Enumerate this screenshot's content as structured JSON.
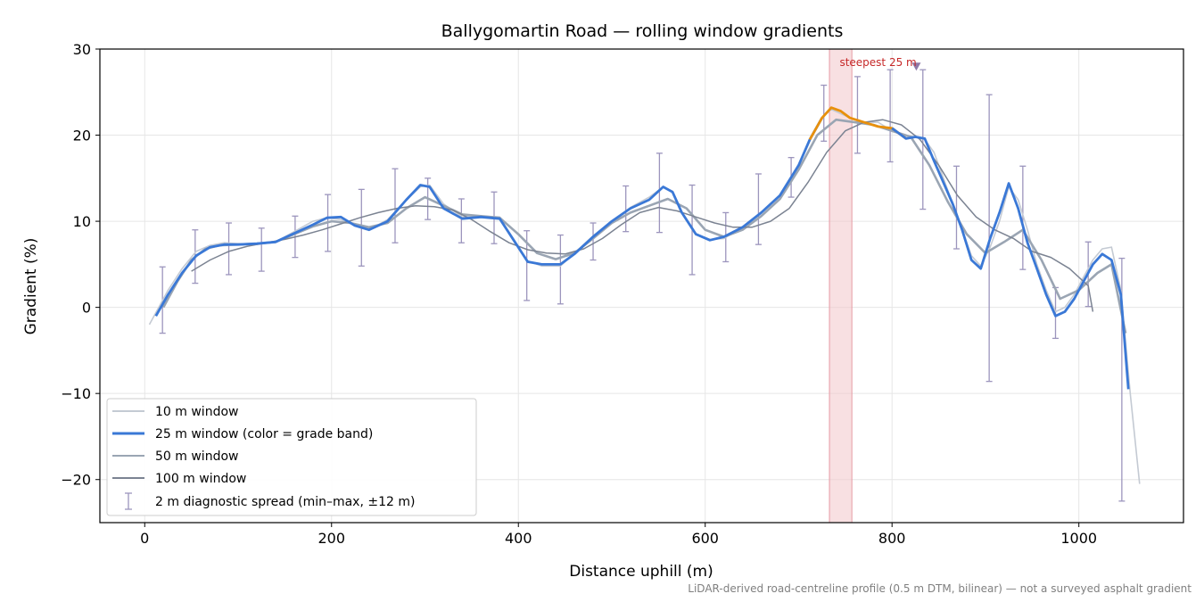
{
  "chart_data": {
    "type": "line",
    "title": "Ballygomartin Road — rolling window gradients",
    "xlabel": "Distance uphill (m)",
    "ylabel": "Gradient (%)",
    "xlim": [
      -48,
      1112
    ],
    "ylim": [
      -25,
      30
    ],
    "xticks": [
      0,
      200,
      400,
      600,
      800,
      1000
    ],
    "yticks": [
      -20,
      -10,
      0,
      10,
      20,
      30
    ],
    "xtick_labels": [
      "0",
      "200",
      "400",
      "600",
      "800",
      "1000"
    ],
    "ytick_labels": [
      "−20",
      "−10",
      "0",
      "10",
      "20",
      "30"
    ],
    "grid": true,
    "legend_position": "lower-left",
    "legend": [
      "10 m window",
      "25 m window (color = grade band)",
      "50 m window",
      "100 m window",
      "2 m diagnostic spread (min–max, ±12 m)"
    ],
    "colors": {
      "w10": "#c4cad3",
      "w25_blue": "#3a78d6",
      "w25_orange": "#e8900c",
      "w50": "#9aa5b3",
      "w100": "#7b8392",
      "errorbar": "#9c95bd",
      "highlight": "#f2c6cb",
      "highlight_edge": "#e69aa4",
      "marker": "#8e79a8",
      "annotation": "#c62828"
    },
    "series": [
      {
        "name": "10 m window",
        "x": [
          5,
          15,
          25,
          40,
          55,
          70,
          85,
          100,
          120,
          140,
          160,
          180,
          195,
          210,
          225,
          240,
          260,
          280,
          295,
          305,
          320,
          340,
          360,
          380,
          395,
          410,
          425,
          445,
          460,
          480,
          500,
          520,
          540,
          555,
          565,
          575,
          590,
          605,
          620,
          640,
          660,
          680,
          700,
          715,
          725,
          735,
          745,
          755,
          770,
          785,
          800,
          815,
          825,
          835,
          845,
          855,
          865,
          875,
          885,
          895,
          905,
          915,
          925,
          935,
          945,
          955,
          965,
          975,
          985,
          995,
          1005,
          1015,
          1025,
          1035,
          1045,
          1055,
          1065
        ],
        "y": [
          -2,
          0,
          2,
          4.5,
          6.5,
          7.2,
          7.5,
          7.4,
          7.3,
          7.6,
          8.8,
          10,
          10.4,
          10.2,
          9.6,
          9,
          10.2,
          12.5,
          14,
          14.2,
          12,
          10.5,
          10.6,
          10.5,
          7.8,
          5.4,
          4.8,
          4.8,
          6.3,
          8.3,
          10,
          11.6,
          12.8,
          14,
          13.5,
          11,
          8.5,
          7.9,
          8,
          9.3,
          11,
          13,
          16.5,
          20,
          22,
          23,
          22.5,
          22,
          21.5,
          21.5,
          20.5,
          20,
          19.8,
          19.5,
          18,
          15,
          12,
          9,
          6,
          4.8,
          7,
          10,
          14,
          12.5,
          9,
          5,
          2,
          -0.5,
          0,
          1.5,
          3.5,
          5.5,
          6.8,
          7,
          2,
          -10,
          -20.5
        ]
      },
      {
        "name": "25 m window (color = grade band)",
        "x": [
          12,
          25,
          40,
          55,
          70,
          85,
          100,
          120,
          140,
          160,
          180,
          195,
          210,
          225,
          240,
          260,
          280,
          295,
          305,
          320,
          340,
          360,
          380,
          395,
          410,
          425,
          445,
          460,
          480,
          500,
          520,
          540,
          555,
          565,
          575,
          590,
          605,
          620,
          640,
          660,
          680,
          700,
          712,
          725,
          735,
          745,
          755,
          770,
          785,
          800,
          815,
          825,
          835,
          845,
          855,
          865,
          875,
          885,
          895,
          905,
          915,
          925,
          935,
          945,
          955,
          965,
          975,
          985,
          995,
          1005,
          1015,
          1025,
          1035,
          1045,
          1053
        ],
        "y": [
          -1,
          1.5,
          4,
          6,
          7,
          7.3,
          7.3,
          7.4,
          7.6,
          8.6,
          9.6,
          10.4,
          10.5,
          9.5,
          9,
          10,
          12.5,
          14.2,
          14,
          11.5,
          10.3,
          10.5,
          10.3,
          7.8,
          5.3,
          5,
          5,
          6.2,
          8.2,
          10,
          11.5,
          12.5,
          14,
          13.4,
          11,
          8.5,
          7.8,
          8.2,
          9.3,
          11,
          13,
          16.5,
          19.5,
          22,
          23.2,
          22.8,
          22,
          21.5,
          21,
          20.8,
          19.6,
          19.8,
          19.6,
          17,
          14.5,
          12,
          9,
          5.5,
          4.5,
          8,
          11,
          14.4,
          11.5,
          7.5,
          4.5,
          1.5,
          -1,
          -0.5,
          1,
          3,
          5,
          6.2,
          5.5,
          1.5,
          -9.5
        ],
        "orange_range": [
          718,
          812
        ]
      },
      {
        "name": "50 m window",
        "x": [
          20,
          35,
          50,
          65,
          80,
          100,
          120,
          140,
          160,
          180,
          200,
          220,
          240,
          260,
          280,
          300,
          320,
          340,
          360,
          380,
          400,
          420,
          440,
          460,
          480,
          500,
          520,
          540,
          560,
          580,
          600,
          620,
          640,
          660,
          680,
          700,
          720,
          740,
          760,
          780,
          800,
          820,
          840,
          860,
          880,
          900,
          920,
          940,
          960,
          980,
          1000,
          1020,
          1035,
          1050
        ],
        "y": [
          0,
          3,
          5.5,
          6.8,
          7.2,
          7.3,
          7.4,
          7.6,
          8.5,
          9.4,
          10,
          9.8,
          9.3,
          9.8,
          11.5,
          12.8,
          11.8,
          10.8,
          10.6,
          10.4,
          8.5,
          6.3,
          5.6,
          6.3,
          8,
          9.8,
          11,
          11.8,
          12.6,
          11.5,
          9,
          8.2,
          9,
          10.6,
          12.6,
          16,
          20,
          21.8,
          21.5,
          21.2,
          20.5,
          19.8,
          16.5,
          12.2,
          8.5,
          6.3,
          7.6,
          9,
          5.5,
          1,
          2,
          4,
          5,
          -3
        ]
      },
      {
        "name": "100 m window",
        "x": [
          50,
          70,
          90,
          110,
          130,
          150,
          170,
          190,
          210,
          230,
          250,
          270,
          290,
          310,
          330,
          350,
          370,
          390,
          410,
          430,
          450,
          470,
          490,
          510,
          530,
          550,
          570,
          590,
          610,
          630,
          650,
          670,
          690,
          710,
          730,
          750,
          770,
          790,
          810,
          830,
          850,
          870,
          890,
          910,
          930,
          950,
          970,
          990,
          1010,
          1015
        ],
        "y": [
          4.2,
          5.5,
          6.5,
          7.1,
          7.5,
          7.9,
          8.4,
          9,
          9.7,
          10.4,
          11,
          11.5,
          11.8,
          11.7,
          11.3,
          10.2,
          8.8,
          7.5,
          6.7,
          6.3,
          6.2,
          6.8,
          8,
          9.6,
          11,
          11.6,
          11.2,
          10.5,
          9.8,
          9.3,
          9.3,
          10,
          11.5,
          14.5,
          18,
          20.5,
          21.5,
          21.8,
          21.2,
          19.5,
          16.5,
          13,
          10.5,
          9,
          8,
          6.5,
          5.8,
          4.5,
          2.5,
          -0.5
        ]
      }
    ],
    "error_bars": {
      "name": "2 m diagnostic spread (min–max, ±12 m)",
      "x": [
        19,
        54,
        90,
        125,
        161,
        196,
        232,
        268,
        303,
        339,
        374,
        409,
        445,
        480,
        515,
        551,
        586,
        622,
        657,
        692,
        727,
        763,
        798,
        833,
        869,
        904,
        940,
        975,
        1010,
        1046
      ],
      "low": [
        -3,
        2.8,
        3.8,
        4.2,
        5.8,
        6.5,
        4.8,
        7.5,
        10.2,
        7.5,
        7.4,
        0.8,
        0.4,
        5.5,
        8.8,
        8.7,
        3.8,
        5.3,
        7.3,
        12.8,
        19.3,
        17.9,
        16.9,
        11.4,
        6.8,
        -8.6,
        4.4,
        -3.6,
        0.1,
        -22.5
      ],
      "high": [
        4.7,
        9,
        9.8,
        9.2,
        10.6,
        13.1,
        13.7,
        16.1,
        15,
        12.6,
        13.4,
        8.9,
        8.4,
        9.8,
        14.1,
        17.9,
        14.2,
        11,
        15.5,
        17.4,
        25.8,
        26.8,
        27.6,
        27.6,
        16.4,
        24.7,
        16.4,
        2.3,
        7.6,
        5.7
      ]
    },
    "highlight": {
      "label": "steepest 25 m",
      "x_range": [
        733,
        757
      ],
      "marker_x": 826,
      "marker_y": 28
    },
    "footnote": "LiDAR-derived road-centreline profile (0.5 m DTM, bilinear) — not a surveyed asphalt gradient"
  }
}
